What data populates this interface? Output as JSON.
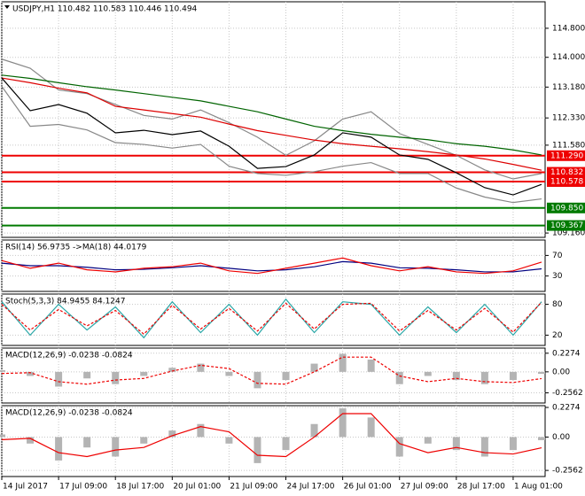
{
  "chart_data": [
    {
      "type": "line",
      "title": "USDJPY,H1  110.482 110.583 110.446 110.494",
      "x": [
        0,
        16,
        32,
        48,
        64,
        80,
        96,
        112,
        128,
        144,
        160,
        176,
        192,
        208,
        224,
        240,
        256,
        272,
        288,
        304
      ],
      "xlim": [
        0,
        306
      ],
      "xticks": [
        {
          "value": 0,
          "label": "14 Jul 2017"
        },
        {
          "value": 32,
          "label": "17 Jul 09:00"
        },
        {
          "value": 64,
          "label": "18 Jul 17:00"
        },
        {
          "value": 96,
          "label": "20 Jul 01:00"
        },
        {
          "value": 128,
          "label": "21 Jul 09:00"
        },
        {
          "value": 160,
          "label": "24 Jul 17:00"
        },
        {
          "value": 192,
          "label": "26 Jul 01:00"
        },
        {
          "value": 224,
          "label": "27 Jul 09:00"
        },
        {
          "value": 256,
          "label": "28 Jul 17:00"
        },
        {
          "value": 288,
          "label": "1 Aug 01:00"
        }
      ],
      "ylim": [
        109.04,
        115.53
      ],
      "yticks": [
        {
          "value": 114.8,
          "label": "114.800"
        },
        {
          "value": 114,
          "label": "114.000"
        },
        {
          "value": 113.18,
          "label": "113.180"
        },
        {
          "value": 112.33,
          "label": "112.330"
        },
        {
          "value": 111.58,
          "label": "111.580"
        },
        {
          "value": 109.16,
          "label": "109.160"
        }
      ],
      "grid": true,
      "levels": [
        {
          "value": 111.29,
          "label": "111.290",
          "color": "#ee0000"
        },
        {
          "value": 110.832,
          "label": "110.832",
          "color": "#ee0000"
        },
        {
          "value": 110.578,
          "label": "110.578",
          "color": "#ee0000"
        },
        {
          "value": 109.85,
          "label": "109.850",
          "color": "#007a00"
        },
        {
          "value": 109.367,
          "label": "109.367",
          "color": "#007a00"
        }
      ],
      "series": [
        {
          "color": "#888888",
          "values": [
            113.95,
            113.7,
            113.1,
            113.0,
            112.7,
            112.4,
            112.3,
            112.55,
            112.2,
            111.8,
            111.3,
            111.7,
            112.3,
            112.5,
            111.9,
            111.6,
            111.3,
            110.9,
            110.65,
            110.8
          ]
        },
        {
          "color": "#888888",
          "values": [
            113.2,
            112.1,
            112.15,
            112.0,
            111.65,
            111.6,
            111.5,
            111.6,
            111.0,
            110.8,
            110.75,
            110.85,
            111.0,
            111.1,
            110.8,
            110.8,
            110.4,
            110.15,
            110.0,
            110.1
          ]
        },
        {
          "color": "#006400",
          "values": [
            113.51,
            113.42,
            113.3,
            113.19,
            113.1,
            113.0,
            112.9,
            112.8,
            112.65,
            112.5,
            112.3,
            112.1,
            111.98,
            111.88,
            111.8,
            111.73,
            111.62,
            111.55,
            111.45,
            111.31
          ]
        },
        {
          "color": "#dd0000",
          "values": [
            113.43,
            113.3,
            113.15,
            113.02,
            112.65,
            112.55,
            112.45,
            112.35,
            112.16,
            111.98,
            111.85,
            111.72,
            111.62,
            111.55,
            111.48,
            111.4,
            111.31,
            111.2,
            111.05,
            110.89
          ]
        },
        {
          "color": "#000000",
          "values": [
            113.43,
            112.53,
            112.7,
            112.46,
            111.92,
            111.99,
            111.87,
            111.97,
            111.55,
            110.94,
            110.99,
            111.31,
            111.92,
            111.8,
            111.31,
            111.19,
            110.82,
            110.41,
            110.21,
            110.5
          ]
        }
      ]
    },
    {
      "type": "line",
      "title": "RSI(14) 56.9735 ->MA(18) 44.0179",
      "x": [
        0,
        16,
        32,
        48,
        64,
        80,
        96,
        112,
        128,
        144,
        160,
        176,
        192,
        208,
        224,
        240,
        256,
        272,
        288,
        304
      ],
      "ylim": [
        0,
        100
      ],
      "yticks": [
        70,
        30
      ],
      "series": [
        {
          "color": "#000080",
          "values": [
            55,
            50,
            50,
            47,
            42,
            43,
            46,
            50,
            45,
            40,
            42,
            48,
            58,
            55,
            46,
            45,
            42,
            38,
            38,
            44
          ]
        },
        {
          "color": "#ee0000",
          "values": [
            60,
            45,
            55,
            42,
            38,
            45,
            48,
            55,
            40,
            35,
            45,
            55,
            65,
            50,
            40,
            48,
            38,
            35,
            40,
            57
          ]
        }
      ]
    },
    {
      "type": "line",
      "title": "Stoch(5,3,3) 84.9455 84.1247",
      "x": [
        0,
        16,
        32,
        48,
        64,
        80,
        96,
        112,
        128,
        144,
        160,
        176,
        192,
        208,
        224,
        240,
        256,
        272,
        288,
        304
      ],
      "ylim": [
        0,
        100
      ],
      "yticks": [
        80,
        20
      ],
      "series": [
        {
          "color": "#2aa7a7",
          "values": [
            85,
            20,
            80,
            30,
            75,
            15,
            85,
            25,
            80,
            20,
            90,
            25,
            85,
            80,
            20,
            75,
            25,
            80,
            20,
            85
          ]
        },
        {
          "color": "#ee0000",
          "dashed": true,
          "values": [
            80,
            30,
            70,
            38,
            68,
            22,
            78,
            32,
            72,
            28,
            82,
            32,
            80,
            82,
            28,
            68,
            30,
            72,
            26,
            84
          ]
        }
      ]
    },
    {
      "type": "macd",
      "title": "MACD(12,26,9) -0.0238 -0.0824",
      "x": [
        0,
        16,
        32,
        48,
        64,
        80,
        96,
        112,
        128,
        144,
        160,
        176,
        192,
        208,
        224,
        240,
        256,
        272,
        288,
        304
      ],
      "ylim": [
        -0.38,
        0.29
      ],
      "yticks": [
        0.2274,
        {
          "value": 0,
          "label": "0.00"
        },
        -0.2562
      ],
      "series": [
        {
          "kind": "bar",
          "color": "#b4b4b4",
          "values": [
            0.02,
            -0.05,
            -0.18,
            -0.08,
            -0.15,
            -0.05,
            0.05,
            0.1,
            -0.05,
            -0.2,
            -0.1,
            0.1,
            0.22,
            0.15,
            -0.15,
            -0.05,
            -0.1,
            -0.15,
            -0.1,
            -0.0238
          ]
        },
        {
          "kind": "line",
          "color": "#ee0000",
          "dashed": true,
          "values": [
            -0.02,
            -0.01,
            -0.12,
            -0.15,
            -0.1,
            -0.08,
            0.01,
            0.08,
            0.04,
            -0.14,
            -0.15,
            0.0,
            0.18,
            0.18,
            -0.05,
            -0.12,
            -0.08,
            -0.12,
            -0.13,
            -0.0824
          ]
        }
      ]
    },
    {
      "type": "macd",
      "title": "MACD(12,26,9) -0.0238 -0.0824",
      "x": [
        0,
        16,
        32,
        48,
        64,
        80,
        96,
        112,
        128,
        144,
        160,
        176,
        192,
        208,
        224,
        240,
        256,
        272,
        288,
        304
      ],
      "ylim": [
        -0.303,
        0.241
      ],
      "yticks": [
        0.2274,
        {
          "value": 0,
          "label": "0.00"
        },
        -0.2562
      ],
      "series": [
        {
          "kind": "bar",
          "color": "#b4b4b4",
          "values": [
            0.02,
            -0.05,
            -0.18,
            -0.08,
            -0.15,
            -0.05,
            0.05,
            0.1,
            -0.05,
            -0.2,
            -0.1,
            0.1,
            0.22,
            0.15,
            -0.15,
            -0.05,
            -0.1,
            -0.15,
            -0.1,
            -0.0238
          ]
        },
        {
          "kind": "line",
          "color": "#ee0000",
          "values": [
            -0.02,
            -0.01,
            -0.12,
            -0.15,
            -0.1,
            -0.08,
            0.01,
            0.08,
            0.04,
            -0.14,
            -0.15,
            0.0,
            0.18,
            0.18,
            -0.05,
            -0.12,
            -0.08,
            -0.12,
            -0.13,
            -0.0824
          ]
        }
      ]
    }
  ]
}
